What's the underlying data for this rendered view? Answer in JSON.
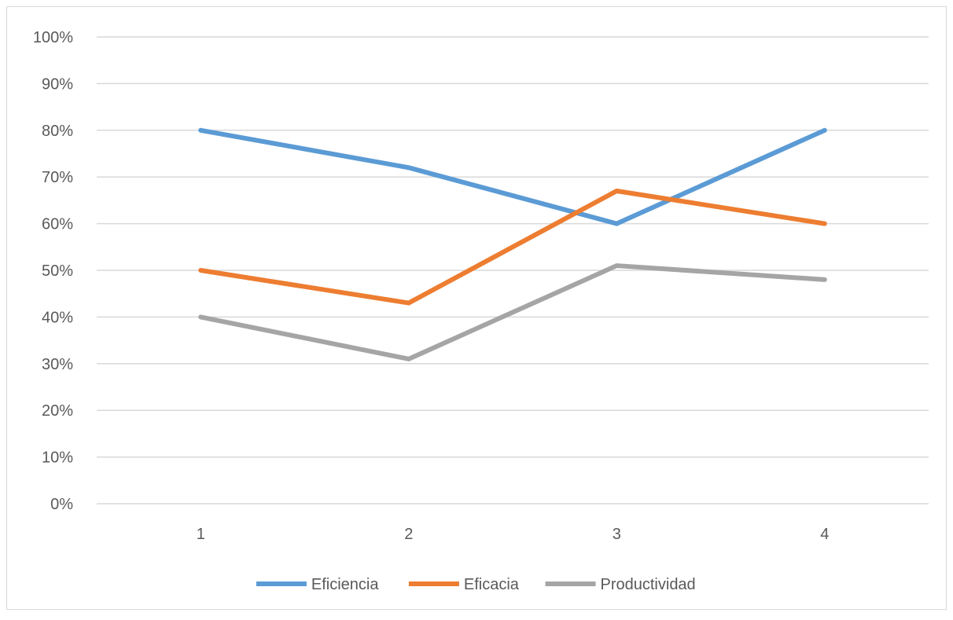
{
  "chart_data": {
    "type": "line",
    "categories": [
      "1",
      "2",
      "3",
      "4"
    ],
    "series": [
      {
        "name": "Eficiencia",
        "values": [
          80,
          72,
          60,
          80
        ],
        "color": "#5b9bd5"
      },
      {
        "name": "Eficacia",
        "values": [
          50,
          43,
          67,
          60
        ],
        "color": "#ed7d31"
      },
      {
        "name": "Productividad",
        "values": [
          40,
          31,
          51,
          48
        ],
        "color": "#a5a5a5"
      }
    ],
    "ylim": [
      0,
      100
    ],
    "yticks": [
      "0%",
      "10%",
      "20%",
      "30%",
      "40%",
      "50%",
      "60%",
      "70%",
      "80%",
      "90%",
      "100%"
    ],
    "grid": true,
    "gridline_color": "#d9d9d9",
    "legend_position": "bottom"
  }
}
